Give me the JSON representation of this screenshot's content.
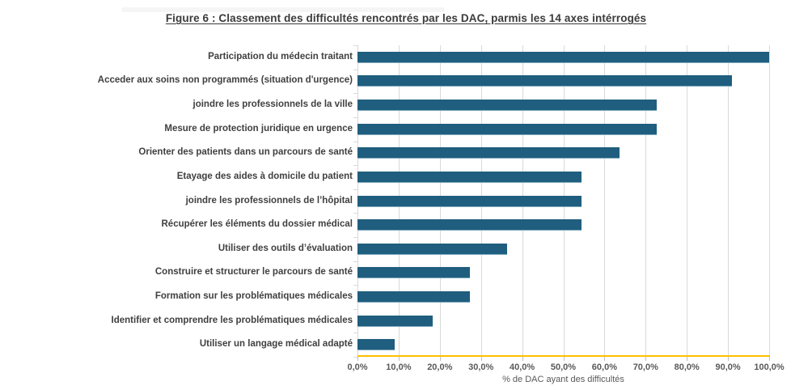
{
  "figure": {
    "title": "Figure 6 : Classement des difficultés rencontrés par les DAC, parmis les 14 axes intérrogés"
  },
  "chart_data": {
    "type": "bar",
    "orientation": "horizontal",
    "title": "Figure 6 : Classement des difficultés rencontrés par les DAC, parmis les 14 axes intérrogés",
    "categories": [
      "Participation du médecin traitant",
      "Acceder aux soins non programmés (situation d'urgence)",
      "joindre les professionnels de la ville",
      "Mesure de protection juridique en urgence",
      "Orienter des patients dans un parcours de santé",
      "Etayage des aides à domicile du patient",
      "joindre les professionnels de l’hôpital",
      "Récupérer les éléments du dossier médical",
      "Utiliser des outils d’évaluation",
      "Construire et structurer le parcours de santé",
      "Formation sur les problématiques médicales",
      "Identifier et comprendre les problématiques médicales",
      "Utiliser un langage médical adapté"
    ],
    "values": [
      100.0,
      90.9,
      72.7,
      72.7,
      63.6,
      54.5,
      54.5,
      54.5,
      36.4,
      27.3,
      27.3,
      18.2,
      9.1
    ],
    "xlabel": "% de DAC ayant des difficultés",
    "ylabel": "",
    "xlim": [
      0,
      100
    ],
    "x_tick_labels": [
      "0,0%",
      "10,0%",
      "20,0%",
      "30,0%",
      "40,0%",
      "50,0%",
      "60,0%",
      "70,0%",
      "80,0%",
      "90,0%",
      "100,0%"
    ],
    "grid": true,
    "legend": false,
    "data_labels": false,
    "colors": {
      "bar": "#1f5e7e",
      "axis_line": "#ffc000",
      "gridline": "#d9d9d9",
      "title_text": "#3b3b3b",
      "category_text": "#404040",
      "tick_text": "#595959"
    }
  }
}
